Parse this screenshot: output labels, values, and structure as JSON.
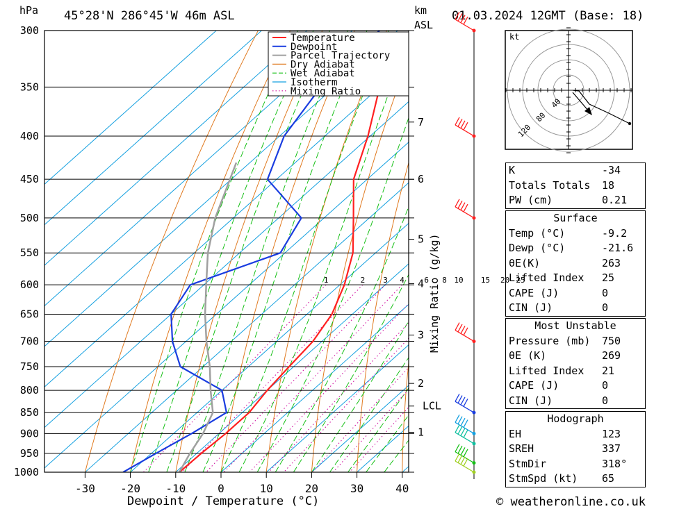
{
  "header": {
    "hpa_label": "hPa",
    "location": "45°28'N 286°45'W 46m ASL",
    "km_label": "km",
    "asl_label": "ASL",
    "datetime": "01.03.2024 12GMT (Base: 18)"
  },
  "legend": [
    "Temperature",
    "Dewpoint",
    "Parcel Trajectory",
    "Dry Adiabat",
    "Wet Adiabat",
    "Isotherm",
    "Mixing Ratio"
  ],
  "colors": {
    "temperature": "#ff2020",
    "dewpoint": "#1a3de0",
    "parcel": "#a0a0a0",
    "dry_adiabat": "#e07a20",
    "wet_adiabat": "#16c016",
    "isotherm": "#14a0e0",
    "mixing_ratio": "#d010a0"
  },
  "footer": {
    "xlabel": "Dewpoint / Temperature (°C)",
    "mixing_label": "Mixing Ratio (g/kg)",
    "copyright": "© weatheronline.co.uk"
  },
  "chart_data": {
    "type": "line",
    "title": "45°28'N 286°45'W 46m ASL",
    "pressure_levels": [
      300,
      350,
      400,
      450,
      500,
      550,
      600,
      650,
      700,
      750,
      800,
      850,
      900,
      950,
      1000
    ],
    "temp_ticks": [
      -30,
      -20,
      -10,
      0,
      10,
      20,
      30,
      40
    ],
    "xlabel": "Dewpoint / Temperature (°C)",
    "ylabel": "hPa",
    "km_levels": [
      {
        "km": "7",
        "p": 385
      },
      {
        "km": "6",
        "p": 450
      },
      {
        "km": "5",
        "p": 530
      },
      {
        "km": "4",
        "p": 598
      },
      {
        "km": "3",
        "p": 688
      },
      {
        "km": "2",
        "p": 785
      },
      {
        "km": "LCL",
        "p": 835
      },
      {
        "km": "1",
        "p": 897
      }
    ],
    "mixing_ratio_labels": [
      "1",
      "2",
      "3",
      "4",
      "6",
      "8",
      "10",
      "15",
      "20",
      "25"
    ],
    "mixing_ratio_values": [
      1,
      2,
      3,
      4,
      6,
      8,
      10,
      15,
      20,
      25
    ],
    "series": [
      {
        "name": "Temperature",
        "points": [
          [
            300,
            -58.5
          ],
          [
            350,
            -60
          ],
          [
            400,
            -50.5
          ],
          [
            450,
            -43
          ],
          [
            500,
            -33.5
          ],
          [
            550,
            -25
          ],
          [
            600,
            -19
          ],
          [
            650,
            -14.5
          ],
          [
            700,
            -12
          ],
          [
            750,
            -11
          ],
          [
            800,
            -10
          ],
          [
            850,
            -8.5
          ],
          [
            900,
            -8.5
          ],
          [
            950,
            -9
          ],
          [
            1000,
            -9.2
          ]
        ]
      },
      {
        "name": "Dewpoint",
        "points": [
          [
            300,
            -74
          ],
          [
            350,
            -73
          ],
          [
            400,
            -69
          ],
          [
            450,
            -62
          ],
          [
            500,
            -45
          ],
          [
            550,
            -41
          ],
          [
            600,
            -53
          ],
          [
            650,
            -50
          ],
          [
            700,
            -43
          ],
          [
            750,
            -35
          ],
          [
            800,
            -20
          ],
          [
            850,
            -13.5
          ],
          [
            900,
            -16
          ],
          [
            950,
            -19
          ],
          [
            1000,
            -21.6
          ]
        ]
      },
      {
        "name": "Parcel Trajectory",
        "points": [
          [
            430,
            -73
          ],
          [
            500,
            -64
          ],
          [
            550,
            -57
          ],
          [
            600,
            -49.5
          ],
          [
            650,
            -42.5
          ],
          [
            700,
            -35.5
          ],
          [
            750,
            -28.5
          ],
          [
            800,
            -22.5
          ],
          [
            850,
            -16.5
          ],
          [
            900,
            -13.5
          ],
          [
            950,
            -11.5
          ],
          [
            1000,
            -9.2
          ]
        ]
      }
    ],
    "wind_barbs": [
      {
        "p": 300,
        "color": "#ff2020"
      },
      {
        "p": 400,
        "color": "#ff2020"
      },
      {
        "p": 500,
        "color": "#ff2020"
      },
      {
        "p": 700,
        "color": "#ff2020"
      },
      {
        "p": 850,
        "color": "#1a3de0"
      },
      {
        "p": 900,
        "color": "#14a0e0"
      },
      {
        "p": 925,
        "color": "#10c0a0"
      },
      {
        "p": 975,
        "color": "#16c016"
      },
      {
        "p": 1000,
        "color": "#a0d020"
      }
    ],
    "hodograph": {
      "unit": "kt",
      "ring_labels": [
        "40",
        "80",
        "120"
      ]
    }
  },
  "table": {
    "indices": [
      {
        "label": "K",
        "value": "-34"
      },
      {
        "label": "Totals Totals",
        "value": "18"
      },
      {
        "label": "PW (cm)",
        "value": "0.21"
      }
    ],
    "surface": {
      "title": "Surface",
      "rows": [
        {
          "label": "Temp (°C)",
          "value": "-9.2"
        },
        {
          "label": "Dewp (°C)",
          "value": "-21.6"
        },
        {
          "label": "θE(K)",
          "value": "263"
        },
        {
          "label": "Lifted Index",
          "value": "25"
        },
        {
          "label": "CAPE (J)",
          "value": "0"
        },
        {
          "label": "CIN (J)",
          "value": "0"
        }
      ]
    },
    "most_unstable": {
      "title": "Most Unstable",
      "rows": [
        {
          "label": "Pressure (mb)",
          "value": "750"
        },
        {
          "label": "θE (K)",
          "value": "269"
        },
        {
          "label": "Lifted Index",
          "value": "21"
        },
        {
          "label": "CAPE (J)",
          "value": "0"
        },
        {
          "label": "CIN (J)",
          "value": "0"
        }
      ]
    },
    "hodograph": {
      "title": "Hodograph",
      "rows": [
        {
          "label": "EH",
          "value": "123"
        },
        {
          "label": "SREH",
          "value": "337"
        },
        {
          "label": "StmDir",
          "value": "318°"
        },
        {
          "label": "StmSpd (kt)",
          "value": "65"
        }
      ]
    }
  }
}
